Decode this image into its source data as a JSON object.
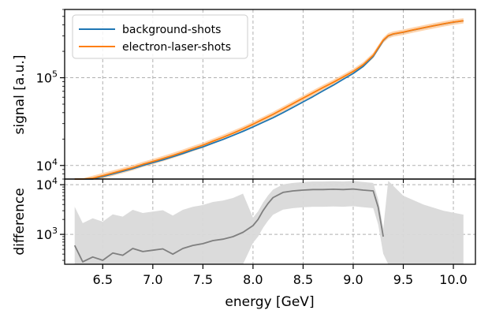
{
  "chart_data": [
    {
      "type": "line",
      "panel": "top",
      "ylabel": "signal [a.u.]",
      "xlabel": "",
      "yscale": "log",
      "xlim": [
        6.12,
        10.22
      ],
      "ylim": [
        7000,
        600000
      ],
      "yticks": [
        {
          "value": 10000,
          "base": "10",
          "exp": "4"
        },
        {
          "value": 100000,
          "base": "10",
          "exp": "5"
        }
      ],
      "grid": true,
      "legend": {
        "position": "top-left"
      },
      "series": [
        {
          "name": "background-shots",
          "color": "#1f77b4",
          "x": [
            6.22,
            6.3,
            6.4,
            6.5,
            6.6,
            6.7,
            6.8,
            6.9,
            7.0,
            7.1,
            7.2,
            7.3,
            7.4,
            7.5,
            7.6,
            7.7,
            7.8,
            7.9,
            8.0,
            8.1,
            8.2,
            8.3,
            8.4,
            8.5,
            8.6,
            8.7,
            8.8,
            8.9,
            9.0,
            9.1,
            9.2,
            9.25,
            9.3,
            9.35,
            9.4,
            9.5,
            9.6,
            9.7,
            9.8,
            9.9,
            10.0,
            10.1
          ],
          "y": [
            6200,
            6500,
            7000,
            7500,
            8000,
            8600,
            9200,
            10000,
            10800,
            11600,
            12600,
            13700,
            15000,
            16300,
            18000,
            19800,
            22000,
            24500,
            27500,
            31000,
            35000,
            40000,
            46000,
            53000,
            61000,
            71000,
            82000,
            96000,
            112000,
            135000,
            175000,
            215000,
            265000,
            300000,
            315000,
            330000,
            350000,
            370000,
            390000,
            410000,
            430000,
            445000
          ]
        },
        {
          "name": "electron-laser-shots",
          "color": "#ff7f0e",
          "band_color": "#ffb877",
          "x": [
            6.22,
            6.3,
            6.4,
            6.5,
            6.6,
            6.7,
            6.8,
            6.9,
            7.0,
            7.1,
            7.2,
            7.3,
            7.4,
            7.5,
            7.6,
            7.7,
            7.8,
            7.9,
            8.0,
            8.1,
            8.2,
            8.3,
            8.4,
            8.5,
            8.6,
            8.7,
            8.8,
            8.9,
            9.0,
            9.1,
            9.2,
            9.25,
            9.3,
            9.35,
            9.4,
            9.5,
            9.6,
            9.7,
            9.8,
            9.9,
            10.0,
            10.1
          ],
          "y": [
            6300,
            6650,
            7150,
            7650,
            8200,
            8800,
            9450,
            10300,
            11100,
            12000,
            13000,
            14200,
            15600,
            17000,
            18900,
            20900,
            23300,
            26100,
            29500,
            33600,
            38200,
            44000,
            50800,
            58600,
            67300,
            77500,
            88600,
            102000,
            118000,
            141000,
            180000,
            220000,
            268000,
            302000,
            316000,
            331000,
            351000,
            371000,
            391000,
            411000,
            431000,
            446000
          ]
        }
      ]
    },
    {
      "type": "line",
      "panel": "bottom",
      "ylabel": "difference",
      "xlabel": "energy [GeV]",
      "yscale": "log",
      "xlim": [
        6.12,
        10.22
      ],
      "ylim": [
        250,
        13000
      ],
      "xticks": [
        {
          "value": 6.5,
          "label": "6.5"
        },
        {
          "value": 7.0,
          "label": "7.0"
        },
        {
          "value": 7.5,
          "label": "7.5"
        },
        {
          "value": 8.0,
          "label": "8.0"
        },
        {
          "value": 8.5,
          "label": "8.5"
        },
        {
          "value": 9.0,
          "label": "9.0"
        },
        {
          "value": 9.5,
          "label": "9.5"
        },
        {
          "value": 10.0,
          "label": "10.0"
        }
      ],
      "yticks": [
        {
          "value": 1000,
          "base": "10",
          "exp": "3"
        },
        {
          "value": 10000,
          "base": "10",
          "exp": "4"
        }
      ],
      "grid": true,
      "series": [
        {
          "color": "#7f7f7f",
          "band_color": "#d9d9d9",
          "x": [
            6.22,
            6.3,
            6.4,
            6.5,
            6.6,
            6.7,
            6.8,
            6.9,
            7.0,
            7.1,
            7.2,
            7.3,
            7.4,
            7.5,
            7.6,
            7.7,
            7.8,
            7.9,
            8.0,
            8.05,
            8.1,
            8.15,
            8.2,
            8.3,
            8.4,
            8.5,
            8.6,
            8.7,
            8.8,
            8.9,
            9.0,
            9.1,
            9.2,
            9.25,
            9.3
          ],
          "y": [
            600,
            280,
            350,
            300,
            420,
            380,
            520,
            450,
            480,
            510,
            400,
            520,
            600,
            650,
            750,
            800,
            900,
            1100,
            1500,
            2000,
            3000,
            4200,
            5500,
            7000,
            7500,
            7800,
            8000,
            8000,
            8100,
            8000,
            8200,
            7800,
            7500,
            3500,
            900
          ]
        }
      ]
    }
  ]
}
